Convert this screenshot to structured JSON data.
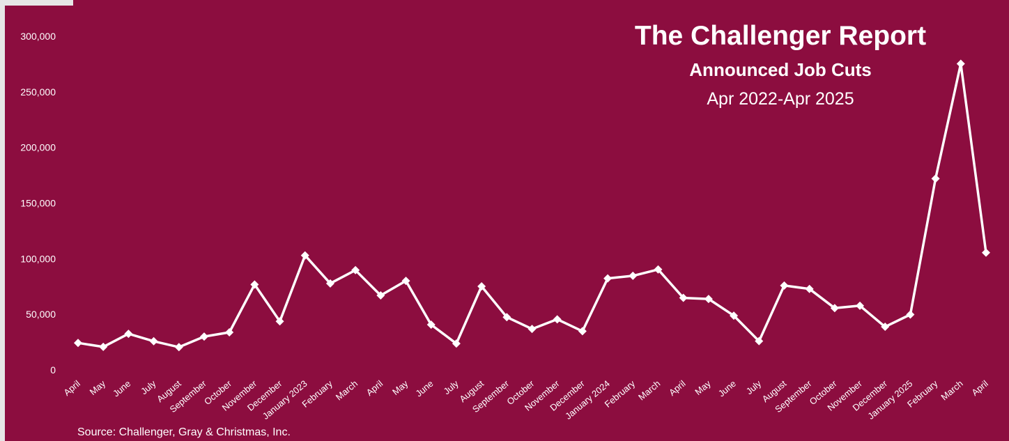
{
  "colors": {
    "background": "#8c0d3f",
    "line": "#ffffff",
    "text": "#ffffff"
  },
  "chart_data": {
    "type": "line",
    "title": "The Challenger Report",
    "subtitle": "Announced Job Cuts",
    "date_range": "Apr 2022-Apr 2025",
    "source": "Source: Challenger, Gray & Christmas, Inc.",
    "xlabel": "",
    "ylabel": "",
    "ylim": [
      0,
      300000
    ],
    "yticks": [
      0,
      50000,
      100000,
      150000,
      200000,
      250000,
      300000
    ],
    "ytick_labels": [
      "0",
      "50,000",
      "100,000",
      "150,000",
      "200,000",
      "250,000",
      "300,000"
    ],
    "grid": false,
    "legend": "none",
    "marker": "diamond",
    "categories": [
      "April",
      "May",
      "June",
      "July",
      "August",
      "September",
      "October",
      "November",
      "December",
      "January 2023",
      "February",
      "March",
      "April",
      "May",
      "June",
      "July",
      "August",
      "September",
      "October",
      "November",
      "December",
      "January 2024",
      "February",
      "March",
      "April",
      "May",
      "June",
      "July",
      "August",
      "September",
      "October",
      "November",
      "December",
      "January 2025",
      "February",
      "March",
      "April"
    ],
    "values": [
      24286,
      20712,
      32517,
      25810,
      20485,
      29989,
      33843,
      76835,
      43651,
      102943,
      77770,
      89703,
      66995,
      80089,
      40709,
      23697,
      75151,
      47457,
      36836,
      45510,
      34817,
      82307,
      84638,
      90309,
      64789,
      63816,
      48786,
      25885,
      75891,
      72821,
      55597,
      57727,
      38792,
      49795,
      172017,
      275240,
      105441
    ]
  }
}
